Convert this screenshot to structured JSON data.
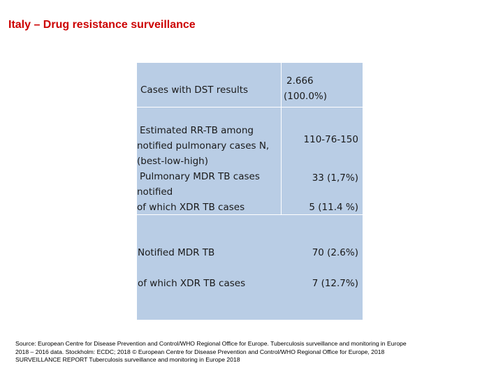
{
  "title": "Italy – Drug resistance surveillance",
  "table": {
    "rows": [
      {
        "label_lines": [
          "Cases with DST results"
        ],
        "value_lines": [
          "2.666",
          "(100.0%)"
        ]
      },
      {
        "label_lines": [
          "Estimated RR-TB among",
          "notified pulmonary cases N,",
          "(best-low-high)"
        ],
        "value_lines": [
          "110-76-150"
        ]
      },
      {
        "label_lines": [
          "Pulmonary MDR TB cases",
          "notified"
        ],
        "value_lines": [
          "33 (1,7%)"
        ]
      },
      {
        "label_lines": [
          "of which XDR TB cases"
        ],
        "value_lines": [
          "5 (11.4 %)"
        ]
      },
      {
        "label_lines": [
          "Notified MDR TB"
        ],
        "value_lines": [
          "70 (2.6%)"
        ]
      },
      {
        "label_lines": [
          "of which XDR TB cases"
        ],
        "value_lines": [
          "7 (12.7%)"
        ]
      }
    ]
  },
  "source": {
    "lines": [
      "Source: European Centre for Disease Prevention and Control/WHO Regional Office for Europe. Tuberculosis surveillance and monitoring in Europe",
      "2018 – 2016 data. Stockholm: ECDC; 2018 © European Centre for Disease Prevention and Control/WHO Regional Office for Europe, 2018",
      "SURVEILLANCE REPORT Tuberculosis surveillance and monitoring in Europe 2018"
    ]
  }
}
